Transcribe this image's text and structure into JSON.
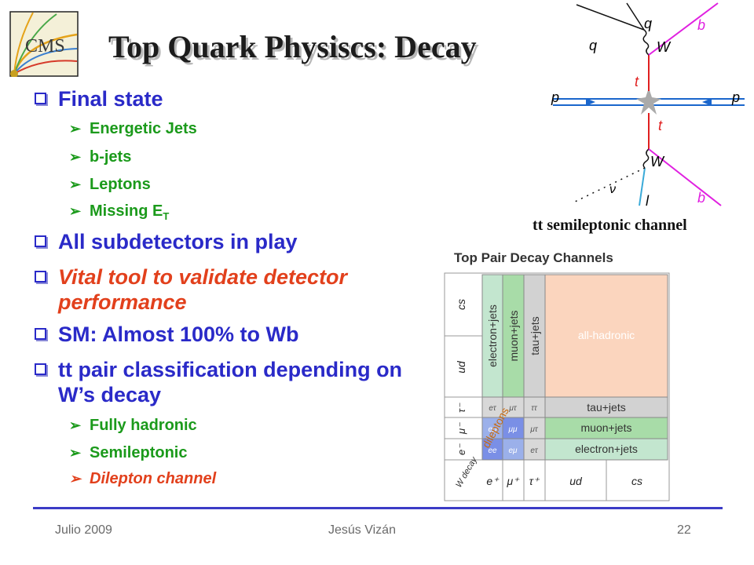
{
  "slide": {
    "title": "Top Quark Physiscs: Decay",
    "logo_text": "CMS"
  },
  "bullets": {
    "final_state": "Final state",
    "final_state_items": [
      "Energetic Jets",
      "b-jets",
      "Leptons",
      "Missing E",
      "T"
    ],
    "all_subdetectors": "All subdetectors in play",
    "vital_tool": "Vital tool to validate detector performance",
    "sm": "SM: Almost 100% to Wb",
    "classification": "tt pair classification depending on W’s decay",
    "classification_items": [
      "Fully hadronic",
      "Semileptonic",
      "Dilepton channel"
    ]
  },
  "feynman": {
    "caption": "tt semileptonic channel",
    "labels": {
      "q_top": "q",
      "q_left": "q",
      "b_top": "b",
      "W_top": "W",
      "t_top": "t",
      "p_left": "p",
      "p_right": "p",
      "t_bottom": "t",
      "W_bottom": "W",
      "nu": "ν",
      "l": "l",
      "b_bottom": "b"
    }
  },
  "decay_chart": {
    "title": "Top Pair Decay Channels",
    "row_labels": [
      "cs",
      "ud",
      "τ⁻",
      "μ⁻",
      "e⁻"
    ],
    "corner_label": "W decay",
    "col_labels": [
      "e⁺",
      "μ⁺",
      "τ⁺",
      "ud",
      "cs"
    ],
    "vertical_labels": [
      "electron+jets",
      "muon+jets",
      "tau+jets"
    ],
    "all_hadronic": "all-hadronic",
    "row_names": [
      "tau+jets",
      "muon+jets",
      "electron+jets"
    ],
    "small_cells": {
      "tau_row": [
        "eτ",
        "μτ",
        "ττ"
      ],
      "mu_row": [
        "eμ",
        "μμ",
        "μτ"
      ],
      "e_row": [
        "ee",
        "eμ",
        "eτ"
      ]
    },
    "dileptons": "dileptons",
    "colors": {
      "electron": "#c3e6cf",
      "muon": "#a8dca8",
      "tau": "#d2d2d2",
      "hadronic": "#fbd5be",
      "dilepton_blue": "#7a8fe6",
      "grid": "#888888"
    }
  },
  "footer": {
    "date": "Julio 2009",
    "author": "Jesús Vizán",
    "page": "22"
  }
}
